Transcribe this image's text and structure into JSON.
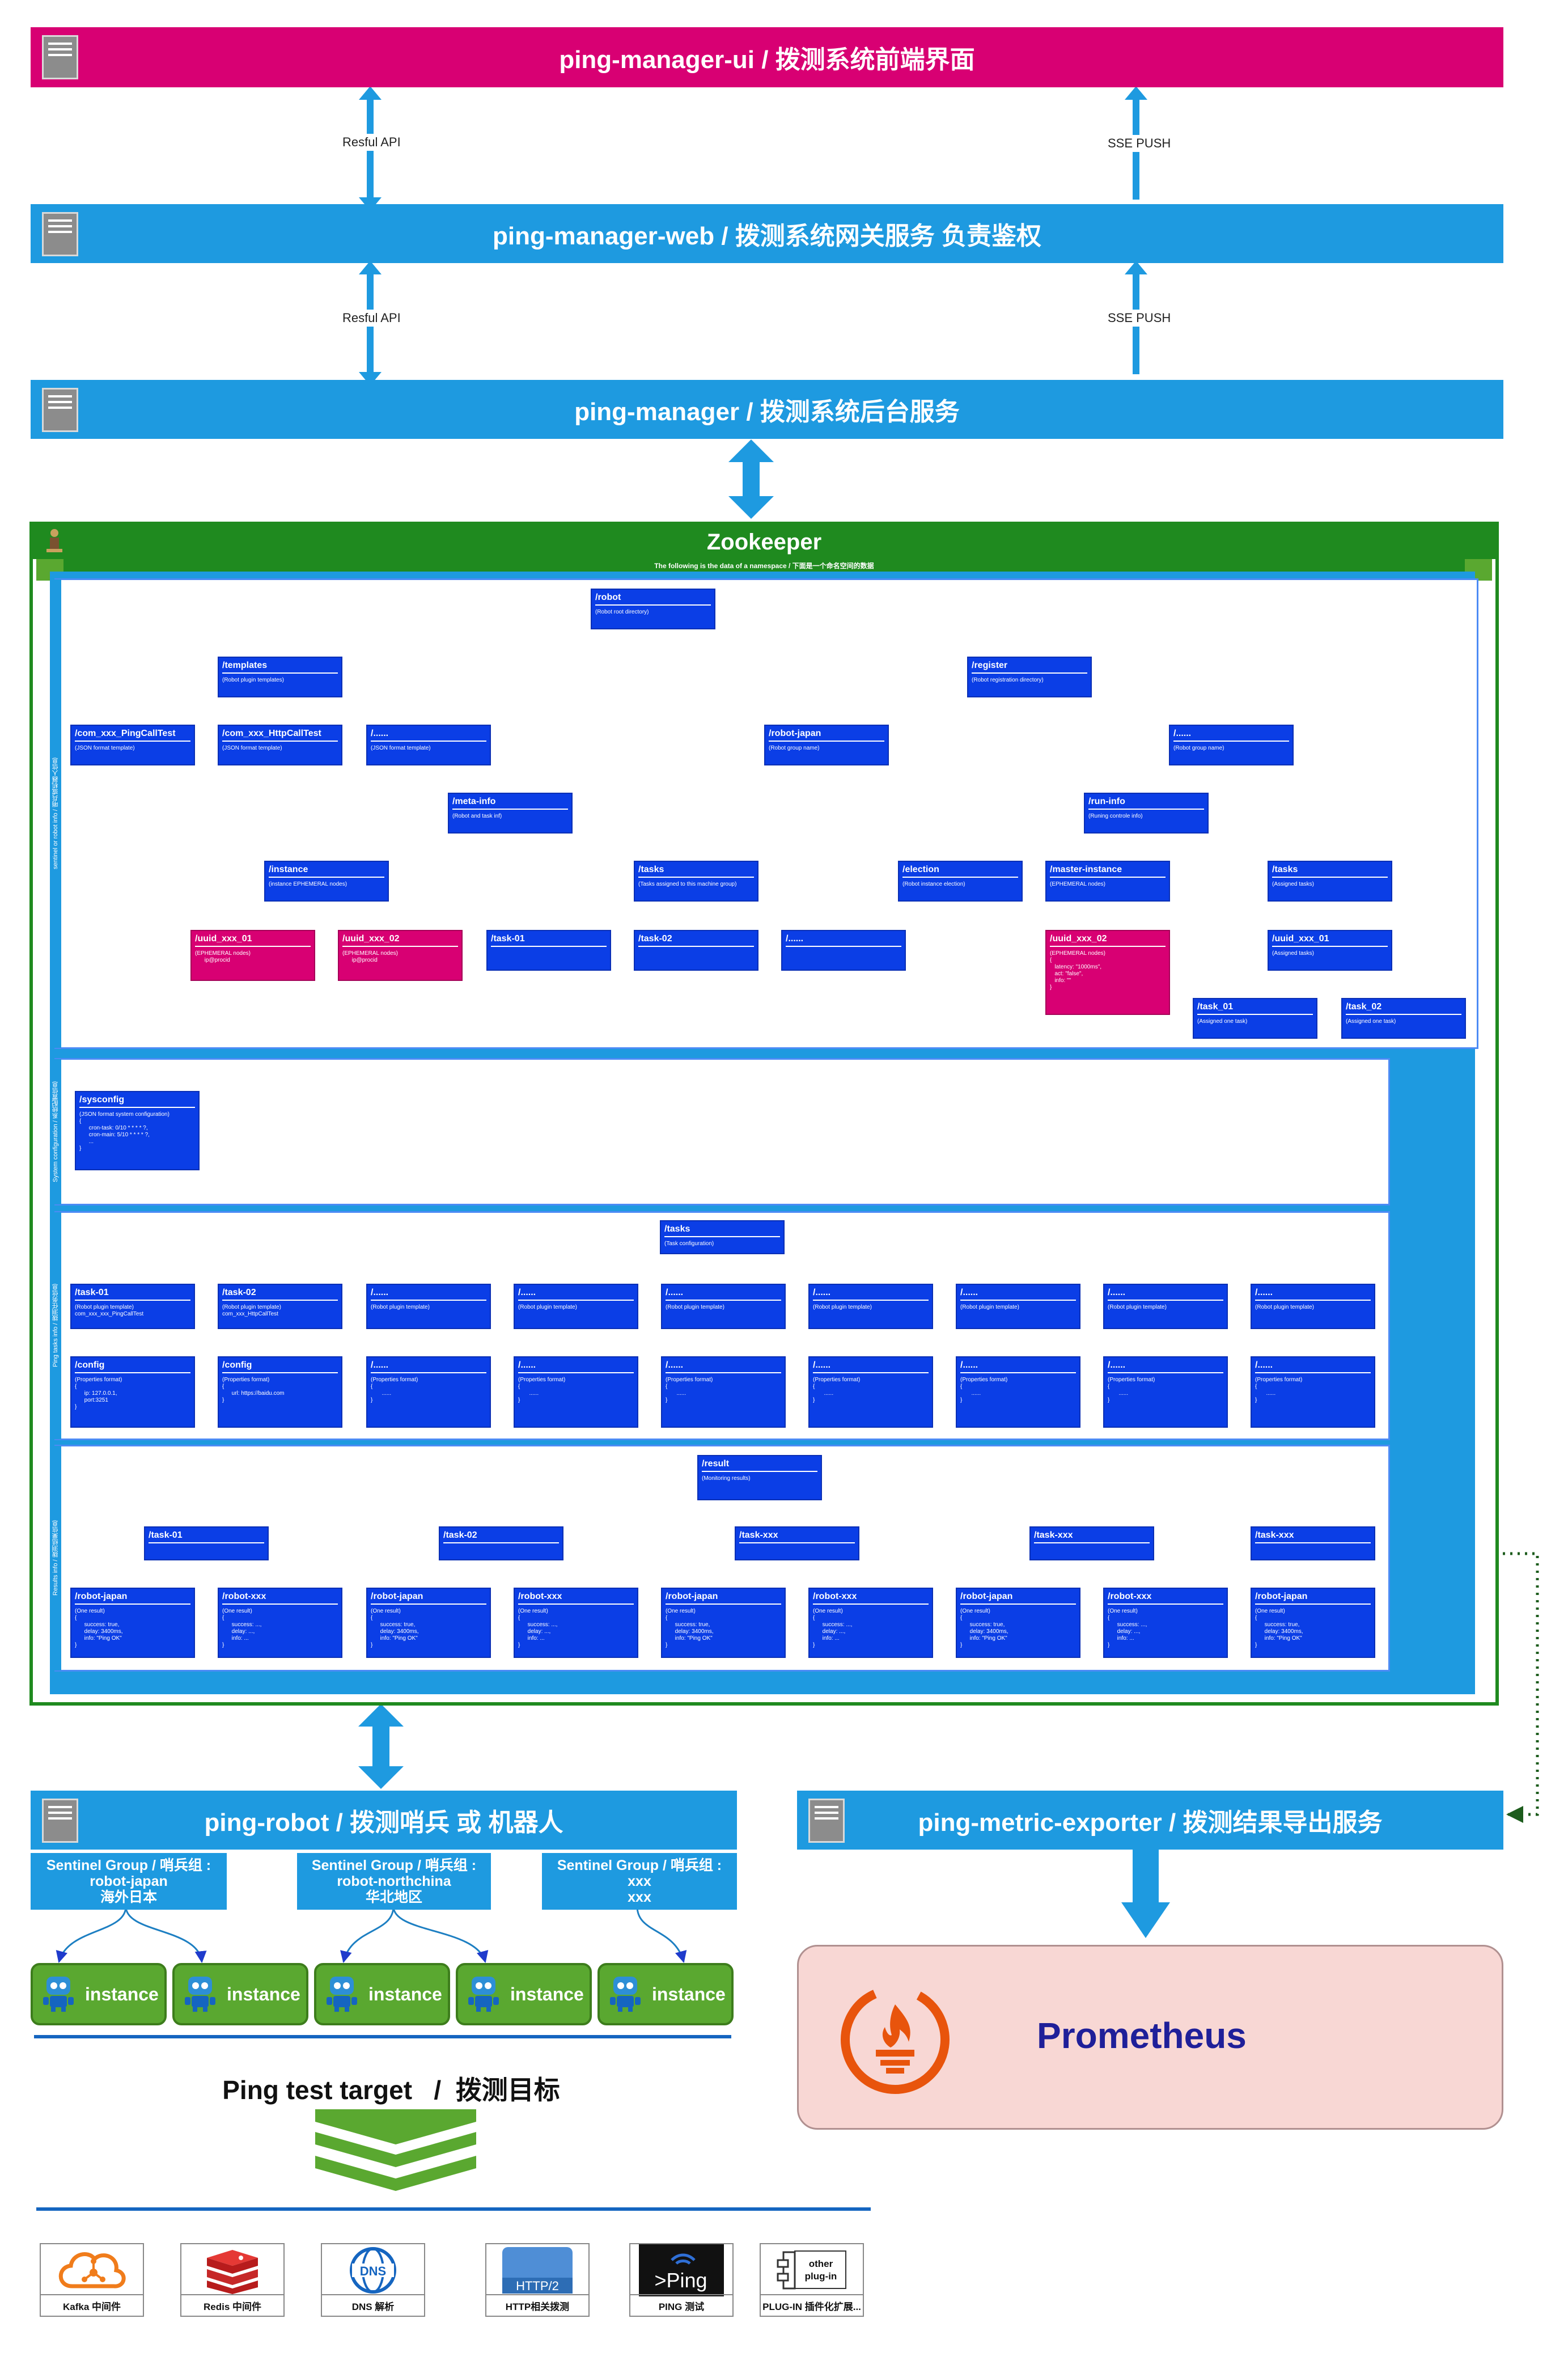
{
  "layers": {
    "ui": "ping-manager-ui / 拨测系统前端界面",
    "web": "ping-manager-web / 拨测系统网关服务 负责鉴权",
    "manager": "ping-manager / 拨测系统后台服务",
    "robot": "ping-robot / 拨测哨兵 或 机器人",
    "exporter": "ping-metric-exporter / 拨测结果导出服务"
  },
  "links": {
    "rest": "Resful API",
    "sse": "SSE PUSH"
  },
  "zookeeper": {
    "title": "Zookeeper",
    "subtitle": "The following is the data of a namespace / 下面是一个命名空间的数据",
    "side_labels": [
      "sentinel or robot info / 哨兵或机器人信息",
      "System configuration / 系统配置信息",
      "Ping tasks info / 拨测任务信息",
      "Results info / 拨测结果信息"
    ]
  },
  "nodes": {
    "robot": {
      "t": "/robot",
      "d": "(Robot root directory)"
    },
    "templates": {
      "t": "/templates",
      "d": "(Robot plugin templates)"
    },
    "register": {
      "t": "/register",
      "d": "(Robot registration directory)"
    },
    "tpl1": {
      "t": "/com_xxx_PingCallTest",
      "d": "(JSON format template)"
    },
    "tpl2": {
      "t": "/com_xxx_HttpCallTest",
      "d": "(JSON format template)"
    },
    "tpl3": {
      "t": "/......",
      "d": "(JSON format template)"
    },
    "rjapan": {
      "t": "/robot-japan",
      "d": "(Robot group name)"
    },
    "rdots": {
      "t": "/......",
      "d": "(Robot group name)"
    },
    "meta": {
      "t": "/meta-info",
      "d": "(Robot and task inf)"
    },
    "run": {
      "t": "/run-info",
      "d": "(Runing controle info)"
    },
    "instance": {
      "t": "/instance",
      "d": "(instance EPHEMERAL nodes)"
    },
    "mtasks": {
      "t": "/tasks",
      "d": "(Tasks assigned to this machine group)"
    },
    "election": {
      "t": "/election",
      "d": "(Robot instance election)"
    },
    "master": {
      "t": "/master-instance",
      "d": "(EPHEMERAL nodes)"
    },
    "rtasks": {
      "t": "/tasks",
      "d": "(Assigned tasks)"
    },
    "uuid1": {
      "t": "/uuid_xxx_01",
      "d": "(EPHEMERAL nodes)\n      ip@procid"
    },
    "uuid2": {
      "t": "/uuid_xxx_02",
      "d": "(EPHEMERAL nodes)\n      ip@procid"
    },
    "mt1": {
      "t": "/task-01",
      "d": ""
    },
    "mt2": {
      "t": "/task-02",
      "d": ""
    },
    "mt3": {
      "t": "/......",
      "d": ""
    },
    "muuid2": {
      "t": "/uuid_xxx_02",
      "d": "(EPHEMERAL nodes)\n{\n   latency: \"1000ms\",\n   act: \"false\",\n   info: \"\"\n}"
    },
    "ruuid1": {
      "t": "/uuid_xxx_01",
      "d": "(Assigned tasks)"
    },
    "rt1": {
      "t": "/task_01",
      "d": "(Assigned one task)"
    },
    "rt2": {
      "t": "/task_02",
      "d": "(Assigned one task)"
    },
    "sysconfig": {
      "t": "/sysconfig",
      "d": "(JSON format system configuration)\n{\n      cron-task: 0/10 * * * * ?,\n      cron-main: 5/10 * * * * ?,\n      ...\n}"
    },
    "ptasks": {
      "t": "/tasks",
      "d": "(Task configuration)"
    },
    "result": {
      "t": "/result",
      "d": "(Monitoring results)"
    }
  },
  "ping_tasks": [
    {
      "t": "/task-01",
      "d": "(Robot plugin template)\ncom_xxx_xxx_PingCallTest",
      "ct": "/config",
      "cd": "(Properties format)\n{\n      ip: 127.0.0.1,\n      port:3251\n}"
    },
    {
      "t": "/task-02",
      "d": "(Robot plugin template)\ncom_xxx_HttpCallTest",
      "ct": "/config",
      "cd": "(Properties format)\n{\n      url: https://baidu.com\n}"
    },
    {
      "t": "/......",
      "d": "(Robot plugin template)",
      "ct": "/......",
      "cd": "(Properties format)\n{\n       ......\n}"
    },
    {
      "t": "/......",
      "d": "(Robot plugin template)",
      "ct": "/......",
      "cd": "(Properties format)\n{\n       ......\n}"
    },
    {
      "t": "/......",
      "d": "(Robot plugin template)",
      "ct": "/......",
      "cd": "(Properties format)\n{\n       ......\n}"
    },
    {
      "t": "/......",
      "d": "(Robot plugin template)",
      "ct": "/......",
      "cd": "(Properties format)\n{\n       ......\n}"
    },
    {
      "t": "/......",
      "d": "(Robot plugin template)",
      "ct": "/......",
      "cd": "(Properties format)\n{\n       ......\n}"
    },
    {
      "t": "/......",
      "d": "(Robot plugin template)",
      "ct": "/......",
      "cd": "(Properties format)\n{\n       ......\n}"
    },
    {
      "t": "/......",
      "d": "(Robot plugin template)",
      "ct": "/......",
      "cd": "(Properties format)\n{\n       ......\n}"
    }
  ],
  "result_tasks": [
    "/task-01",
    "/task-02",
    "/task-xxx",
    "/task-xxx",
    "/task-xxx"
  ],
  "results": [
    {
      "t": "/robot-japan",
      "d": "(One result)\n{\n      success: true,\n      delay: 3400ms,\n      info: \"Ping OK\"\n}"
    },
    {
      "t": "/robot-xxx",
      "d": "(One result)\n{\n      success: ...,\n      delay: ...,\n      info: ...\n}"
    },
    {
      "t": "/robot-japan",
      "d": "(One result)\n{\n      success: true,\n      delay: 3400ms,\n      info: \"Ping OK\"\n}"
    },
    {
      "t": "/robot-xxx",
      "d": "(One result)\n{\n      success: ...,\n      delay: ...,\n      info: ...\n}"
    },
    {
      "t": "/robot-japan",
      "d": "(One result)\n{\n      success: true,\n      delay: 3400ms,\n      info: \"Ping OK\"\n}"
    },
    {
      "t": "/robot-xxx",
      "d": "(One result)\n{\n      success: ...,\n      delay: ...,\n      info: ...\n}"
    },
    {
      "t": "/robot-japan",
      "d": "(One result)\n{\n      success: true,\n      delay: 3400ms,\n      info: \"Ping OK\"\n}"
    },
    {
      "t": "/robot-xxx",
      "d": "(One result)\n{\n      success: ...,\n      delay: ...,\n      info: ...\n}"
    },
    {
      "t": "/robot-japan",
      "d": "(One result)\n{\n      success: true,\n      delay: 3400ms,\n      info: \"Ping OK\"\n}"
    }
  ],
  "groups": [
    {
      "l1": "Sentinel Group / 哨兵组 :",
      "l2": "robot-japan",
      "l3": "海外日本"
    },
    {
      "l1": "Sentinel Group / 哨兵组 :",
      "l2": "robot-northchina",
      "l3": "华北地区"
    },
    {
      "l1": "Sentinel Group / 哨兵组 :",
      "l2": "xxx",
      "l3": "xxx"
    }
  ],
  "instance_label": "instance",
  "target": "Ping test target   /  拨测目标",
  "prometheus": "Prometheus",
  "targets": [
    {
      "icon": "kafka-icon",
      "cap": "Kafka 中间件"
    },
    {
      "icon": "redis-icon",
      "cap": "Redis 中间件"
    },
    {
      "icon": "dns-icon",
      "cap": "DNS 解析",
      "glyph": "DNS"
    },
    {
      "icon": "http2-icon",
      "cap": "HTTP相关拨测",
      "glyph": "HTTP/2"
    },
    {
      "icon": "ping-icon",
      "cap": "PING 测试",
      "glyph": ">Ping"
    },
    {
      "icon": "plugin-icon",
      "cap": "PLUG-IN 插件化扩展...",
      "glyph": "other\nplug-in"
    }
  ],
  "colors": {
    "ui": "#d80073",
    "layer": "#1e9ae0",
    "node": "#0b3ee6",
    "pink": "#d80073",
    "zk": "#1f8a1f",
    "instance": "#5aa830",
    "prom": "#f8d7d4",
    "prom_text": "#1f1f99"
  }
}
